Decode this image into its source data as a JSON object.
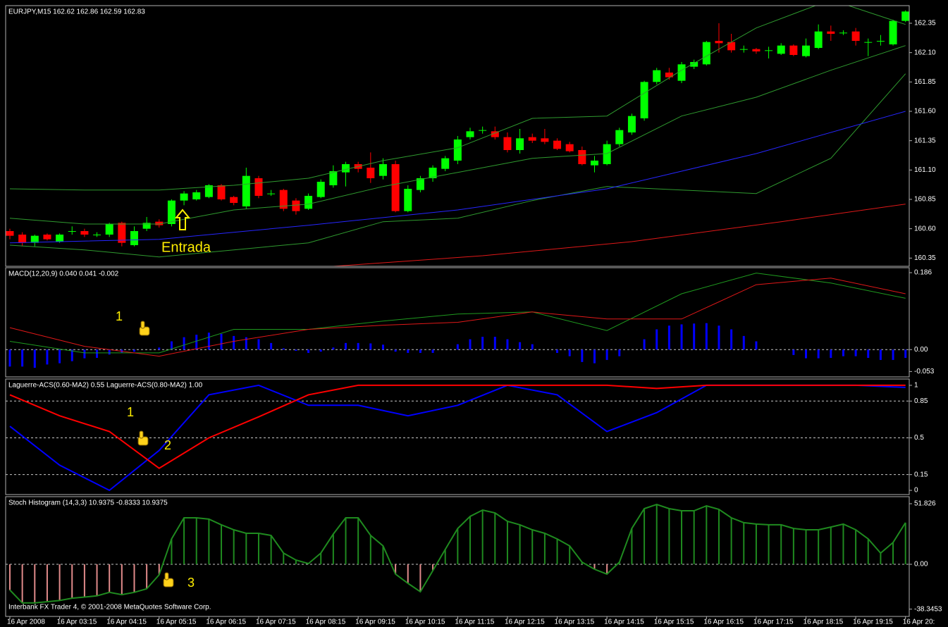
{
  "chart_data": [
    {
      "type": "candlestick",
      "title": "EURJPY,M15  162.62 162.86 162.59 162.83",
      "open": [
        160.58,
        160.55,
        160.48,
        160.55,
        160.49,
        160.58,
        160.58,
        160.55,
        160.55,
        160.65,
        160.46,
        160.6,
        160.66,
        160.64,
        160.84,
        160.85,
        160.87,
        160.97,
        160.87,
        160.79,
        161.03,
        160.9,
        160.93,
        160.84,
        160.77,
        160.87,
        160.97,
        161.08,
        161.15,
        161.12,
        161.05,
        161.15,
        160.75,
        160.93,
        161.03,
        161.11,
        161.18,
        161.38,
        161.44,
        161.43,
        161.38,
        161.27,
        161.38,
        161.37,
        161.35,
        161.32,
        161.27,
        161.14,
        161.15,
        161.32,
        161.42,
        161.54,
        161.85,
        161.93,
        161.86,
        161.98,
        162.0,
        162.2,
        162.19,
        162.13,
        162.13,
        162.12,
        162.09,
        162.16,
        162.07,
        162.14,
        162.28,
        162.27,
        162.28,
        162.19,
        162.2,
        162.17,
        162.37
      ],
      "high": [
        160.6,
        160.57,
        160.55,
        160.56,
        160.56,
        160.62,
        160.6,
        160.57,
        160.65,
        160.66,
        160.62,
        160.7,
        160.68,
        160.85,
        160.92,
        160.93,
        160.98,
        160.98,
        160.88,
        161.12,
        161.05,
        160.93,
        160.94,
        160.86,
        160.9,
        161.02,
        161.14,
        161.17,
        161.17,
        161.25,
        161.2,
        161.18,
        160.97,
        161.05,
        161.14,
        161.22,
        161.39,
        161.46,
        161.47,
        161.47,
        161.42,
        161.45,
        161.41,
        161.45,
        161.37,
        161.34,
        161.3,
        161.22,
        161.35,
        161.46,
        161.58,
        161.86,
        161.97,
        161.97,
        162.02,
        162.04,
        162.2,
        162.35,
        162.26,
        162.16,
        162.14,
        162.15,
        162.18,
        162.17,
        162.22,
        162.34,
        162.33,
        162.29,
        162.31,
        162.22,
        162.25,
        162.38,
        162.46
      ],
      "low": [
        160.51,
        160.45,
        160.45,
        160.5,
        160.48,
        160.55,
        160.53,
        160.53,
        160.53,
        160.45,
        160.45,
        160.58,
        160.61,
        160.62,
        160.8,
        160.84,
        160.86,
        160.84,
        160.8,
        160.77,
        160.86,
        160.88,
        160.75,
        160.72,
        160.76,
        160.86,
        160.95,
        160.96,
        161.08,
        160.99,
        161.02,
        160.74,
        160.74,
        160.91,
        161.0,
        161.09,
        161.15,
        161.36,
        161.41,
        161.36,
        161.25,
        161.24,
        161.33,
        161.32,
        161.27,
        161.25,
        161.14,
        161.08,
        161.14,
        161.3,
        161.4,
        161.52,
        161.83,
        161.87,
        161.84,
        161.96,
        161.99,
        162.1,
        162.1,
        162.1,
        162.09,
        162.05,
        162.08,
        162.07,
        162.06,
        162.13,
        162.2,
        162.25,
        162.16,
        162.07,
        162.16,
        162.16,
        162.36
      ],
      "close": [
        160.54,
        160.48,
        160.54,
        160.51,
        160.55,
        160.58,
        160.55,
        160.55,
        160.64,
        160.48,
        160.58,
        160.65,
        160.63,
        160.84,
        160.9,
        160.91,
        160.97,
        160.85,
        160.82,
        161.05,
        160.88,
        160.9,
        160.77,
        160.75,
        160.88,
        161.0,
        161.09,
        161.15,
        161.11,
        161.03,
        161.15,
        160.75,
        160.94,
        161.03,
        161.12,
        161.2,
        161.36,
        161.43,
        161.44,
        161.38,
        161.27,
        161.37,
        161.35,
        161.34,
        161.28,
        161.26,
        161.15,
        161.18,
        161.32,
        161.44,
        161.56,
        161.85,
        161.95,
        161.89,
        162.0,
        162.02,
        162.19,
        162.18,
        162.12,
        162.13,
        162.11,
        162.12,
        162.16,
        162.08,
        162.16,
        162.28,
        162.26,
        162.27,
        162.2,
        162.19,
        162.2,
        162.37,
        162.45
      ],
      "up_color": "#00ff00",
      "down_color": "#ff0000",
      "series": [
        {
          "color": "#2f9a2f",
          "x": [
            0,
            6,
            12,
            18,
            24,
            30,
            36,
            42,
            48,
            54,
            60,
            66,
            72
          ],
          "values": [
            160.94,
            160.93,
            160.93,
            160.97,
            161.03,
            161.18,
            161.29,
            161.54,
            161.56,
            161.95,
            162.31,
            162.55,
            162.34
          ]
        },
        {
          "color": "#2f9a2f",
          "x": [
            0,
            6,
            12,
            18,
            24,
            30,
            36,
            42,
            48,
            54,
            60,
            66,
            72
          ],
          "values": [
            160.69,
            160.64,
            160.64,
            160.76,
            160.81,
            160.96,
            161.08,
            161.2,
            161.24,
            161.56,
            161.72,
            161.95,
            162.16
          ]
        },
        {
          "color": "#2f9a2f",
          "x": [
            0,
            6,
            12,
            18,
            24,
            30,
            36,
            42,
            48,
            54,
            60,
            66,
            72
          ],
          "values": [
            160.46,
            160.42,
            160.36,
            160.42,
            160.48,
            160.66,
            160.69,
            160.84,
            160.96,
            160.93,
            160.9,
            161.2,
            161.92
          ]
        },
        {
          "color": "#2626ff",
          "x": [
            0,
            12,
            24,
            36,
            48,
            60,
            72
          ],
          "values": [
            160.48,
            160.51,
            160.63,
            160.76,
            160.94,
            161.24,
            161.6
          ]
        },
        {
          "color": "#e01818",
          "x": [
            26,
            38,
            50,
            62,
            72
          ],
          "values": [
            160.28,
            160.37,
            160.49,
            160.66,
            160.81
          ]
        }
      ],
      "xlim": [
        -0.34,
        72.3
      ],
      "ylim": [
        160.28,
        162.5
      ],
      "yticks": [
        162.35,
        {
          "value": 162.1,
          "label": "162.10"
        },
        161.85,
        {
          "value": 161.6,
          "label": "161.60"
        },
        161.35,
        {
          "value": 161.1,
          "label": "161.10"
        },
        160.85,
        {
          "value": 160.6,
          "label": "160.60"
        },
        160.35
      ],
      "annotations": [
        "Entrada"
      ]
    },
    {
      "type": "bar",
      "title": "MACD(12,20,9) 0.040 0.041 -0.002",
      "values": [
        -0.041,
        -0.041,
        -0.044,
        -0.036,
        -0.033,
        -0.028,
        -0.021,
        -0.02,
        -0.012,
        -0.008,
        -0.005,
        0,
        0.005,
        0.02,
        0.03,
        0.036,
        0.041,
        0.038,
        0.033,
        0.03,
        0.025,
        0.016,
        0.003,
        -0.003,
        -0.008,
        -0.005,
        0.005,
        0.016,
        0.016,
        0.015,
        0.012,
        -0.005,
        -0.008,
        -0.008,
        -0.008,
        0,
        0.013,
        0.025,
        0.031,
        0.031,
        0.025,
        0.018,
        0.013,
        0,
        -0.008,
        -0.016,
        -0.03,
        -0.033,
        -0.025,
        -0.016,
        0,
        0.025,
        0.049,
        0.058,
        0.061,
        0.063,
        0.064,
        0.058,
        0.049,
        0.033,
        0.02,
        0,
        0,
        -0.013,
        -0.021,
        -0.021,
        -0.02,
        -0.016,
        -0.016,
        -0.02,
        -0.025,
        -0.025,
        -0.02
      ],
      "color": "#0000ff",
      "bar_width": 3,
      "series": [
        {
          "color": "#1f9a1f",
          "x": [
            0,
            6,
            12,
            18,
            24,
            30,
            36,
            42,
            48,
            54,
            60,
            66,
            72
          ],
          "values": [
            0.02,
            -0.008,
            -0.008,
            0.049,
            0.049,
            0.069,
            0.086,
            0.091,
            0.046,
            0.135,
            0.185,
            0.161,
            0.124
          ]
        },
        {
          "color": "#e01818",
          "x": [
            0,
            6,
            12,
            18,
            24,
            30,
            36,
            42,
            48,
            54,
            60,
            66,
            72
          ],
          "values": [
            0.053,
            0.008,
            -0.016,
            0.02,
            0.049,
            0.059,
            0.066,
            0.091,
            0.074,
            0.074,
            0.157,
            0.173,
            0.135
          ]
        }
      ],
      "xlim": [
        -0.34,
        72.3
      ],
      "ylim": [
        -0.066,
        0.198
      ],
      "yticks": [
        0.186,
        {
          "value": 0,
          "label": "0.00"
        },
        -0.053
      ],
      "levels": [
        0
      ],
      "annotations": [
        "1"
      ]
    },
    {
      "type": "line",
      "title": "Laguerre-ACS(0.60-MA2) 0.55  Laguerre-ACS(0.80-MA2) 1.00",
      "series": [
        {
          "color": "#0000ff",
          "x": [
            0,
            4,
            8,
            12,
            16,
            20,
            24,
            28,
            32,
            36,
            40,
            44,
            48,
            52,
            56,
            60,
            64,
            68,
            72
          ],
          "values": [
            0.61,
            0.24,
            0,
            0.38,
            0.91,
            1,
            0.81,
            0.81,
            0.71,
            0.81,
            1,
            0.91,
            0.56,
            0.74,
            1,
            1,
            1,
            1,
            0.98
          ]
        },
        {
          "color": "#ff0000",
          "x": [
            0,
            4,
            8,
            12,
            16,
            20,
            24,
            28,
            32,
            36,
            40,
            44,
            48,
            52,
            56,
            60,
            64,
            68,
            72
          ],
          "values": [
            0.91,
            0.71,
            0.56,
            0.21,
            0.5,
            0.7,
            0.91,
            1,
            1,
            1,
            1,
            1,
            1,
            0.97,
            1,
            1,
            1,
            1,
            1
          ]
        }
      ],
      "xlim": [
        -0.34,
        72.3
      ],
      "ylim": [
        -0.04,
        1.06
      ],
      "yticks": [
        1,
        0.85,
        0.5,
        0.15,
        0
      ],
      "levels": [
        0.85,
        0.5,
        0.15
      ],
      "annotations": [
        "1",
        "2"
      ]
    },
    {
      "type": "bar",
      "title": "Stoch Histogram (14,3,3) 10.9375 -0.8333 10.9375",
      "values": [
        -22,
        -33,
        -33,
        -32,
        -31,
        -29,
        -28,
        -27,
        -24,
        -26,
        -24,
        -21,
        -9,
        21.7,
        39.8,
        39.8,
        38.6,
        33.8,
        29.5,
        26.5,
        26.5,
        24.7,
        9.6,
        3.6,
        0.6,
        9.6,
        25.9,
        39.8,
        39.8,
        24.7,
        15.7,
        -8.4,
        -16.3,
        -23.5,
        -5.4,
        12.7,
        30.7,
        41.0,
        46.4,
        44.0,
        36.8,
        33.8,
        29.5,
        26.5,
        21.7,
        15.7,
        1.8,
        -4.2,
        -8.4,
        1.8,
        30.7,
        47.6,
        51.2,
        47.6,
        45.8,
        45.8,
        50.0,
        47.0,
        39.8,
        35.6,
        34.4,
        33.8,
        33.8,
        30.7,
        29.5,
        29.5,
        31.9,
        34.4,
        29.5,
        21.7,
        9.6,
        18.7,
        35.6
      ],
      "color": "#1f8a1f",
      "negative_color": "#e08a8a",
      "line_color": "#1f8a1f",
      "bar_width": 2,
      "xlim": [
        -0.34,
        72.3
      ],
      "ylim": [
        -44.6,
        57.85
      ],
      "yticks": [
        51.826,
        {
          "value": 0,
          "label": "0.00"
        },
        -38.3453
      ],
      "levels": [
        0
      ],
      "xticks": [
        {
          "value": 0,
          "label": "16 Apr 2008"
        },
        {
          "value": 4,
          "label": "16 Apr 03:15"
        },
        {
          "value": 8,
          "label": "16 Apr 04:15"
        },
        {
          "value": 12,
          "label": "16 Apr 05:15"
        },
        {
          "value": 16,
          "label": "16 Apr 06:15"
        },
        {
          "value": 20,
          "label": "16 Apr 07:15"
        },
        {
          "value": 24,
          "label": "16 Apr 08:15"
        },
        {
          "value": 28,
          "label": "16 Apr 09:15"
        },
        {
          "value": 32,
          "label": "16 Apr 10:15"
        },
        {
          "value": 36,
          "label": "16 Apr 11:15"
        },
        {
          "value": 40,
          "label": "16 Apr 12:15"
        },
        {
          "value": 44,
          "label": "16 Apr 13:15"
        },
        {
          "value": 48,
          "label": "16 Apr 14:15"
        },
        {
          "value": 52,
          "label": "16 Apr 15:15"
        },
        {
          "value": 56,
          "label": "16 Apr 16:15"
        },
        {
          "value": 60,
          "label": "16 Apr 17:15"
        },
        {
          "value": 64,
          "label": "16 Apr 18:15"
        },
        {
          "value": 68,
          "label": "16 Apr 19:15"
        },
        {
          "value": 72,
          "label": "16 Apr 20:"
        }
      ],
      "footer": "Interbank FX Trader 4, © 2001-2008 MetaQuotes Software Corp.",
      "annotations": [
        "3"
      ]
    }
  ]
}
